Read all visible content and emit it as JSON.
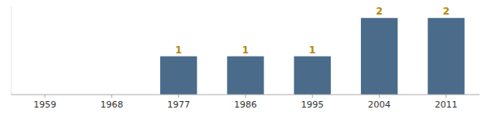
{
  "chart_data": {
    "type": "bar",
    "categories": [
      "1959",
      "1968",
      "1977",
      "1986",
      "1995",
      "2004",
      "2011"
    ],
    "values": [
      0,
      0,
      1,
      1,
      1,
      2,
      2
    ],
    "color": "#4A6B8A",
    "ylim": [
      0,
      2.3
    ],
    "grid": false,
    "data_labels": true,
    "tick_labels": "x"
  }
}
